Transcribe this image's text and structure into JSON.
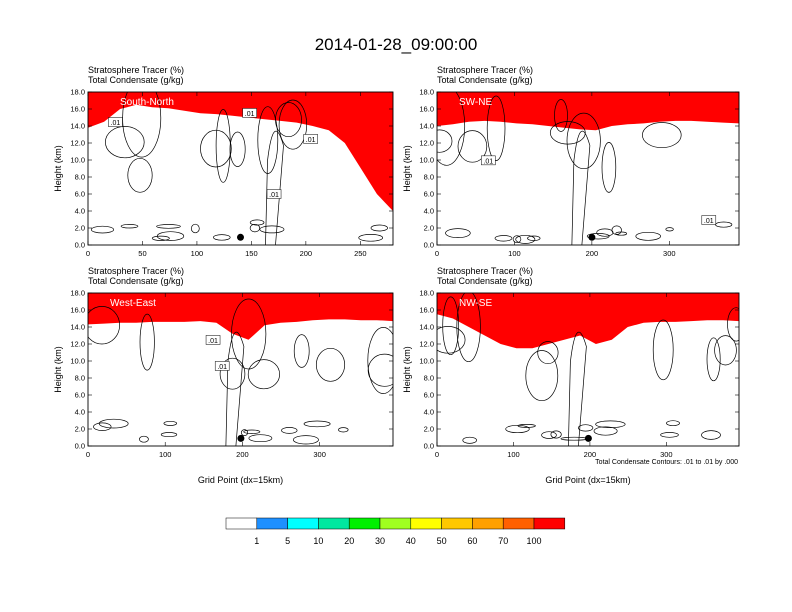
{
  "figure": {
    "title": "2014-01-28_09:00:00",
    "contour_note": "Total Condensate Contours: .01 to .01 by .000",
    "colorbar": {
      "labels": [
        "1",
        "5",
        "10",
        "20",
        "30",
        "40",
        "50",
        "60",
        "70",
        "100"
      ],
      "colors": [
        "#ffffff",
        "#1e90ff",
        "#00ffff",
        "#00e8a0",
        "#00f000",
        "#a0ff20",
        "#ffff00",
        "#ffc800",
        "#ffa000",
        "#ff6000",
        "#ff0000"
      ]
    }
  },
  "chart_data": [
    {
      "type": "heatmap",
      "subtitle_1": "Stratosphere Tracer   (%)",
      "subtitle_2": "Total Condensate   (g/kg)",
      "panel_label": "South-North",
      "ylabel": "Height (km)",
      "xlabel": "",
      "xlim": [
        0,
        280
      ],
      "ylim": [
        0,
        18
      ],
      "xticks": [
        0,
        50,
        100,
        150,
        200,
        250
      ],
      "yticks": [
        "0.0",
        "2.0",
        "4.0",
        "6.0",
        "8.0",
        "10.0",
        "12.0",
        "14.0",
        "16.0",
        "18.0"
      ],
      "contour_labels": [
        ".01",
        ".01",
        ".01",
        ".01"
      ],
      "marker_x": 140,
      "tracer_base_km": [
        13.8,
        14.5,
        16,
        16.5,
        16.2,
        16.1,
        15.8,
        15.5,
        15.4,
        15.2,
        15.0,
        14.8,
        14.6,
        14.4,
        14.0,
        13.5,
        12.0,
        9.0,
        6.0,
        4.0
      ]
    },
    {
      "type": "heatmap",
      "subtitle_1": "Stratosphere Tracer   (%)",
      "subtitle_2": "Total Condensate   (g/kg)",
      "panel_label": "SW-NE",
      "ylabel": "Height (km)",
      "xlabel": "",
      "xlim": [
        0,
        390
      ],
      "ylim": [
        0,
        18
      ],
      "xticks": [
        0,
        100,
        200,
        300
      ],
      "yticks": [
        "0.0",
        "2.0",
        "4.0",
        "6.0",
        "8.0",
        "10.0",
        "12.0",
        "14.0",
        "16.0",
        "18.0"
      ],
      "contour_labels": [
        ".01",
        ".01"
      ],
      "marker_x": 200,
      "tracer_base_km": [
        14.0,
        14.2,
        14.5,
        14.6,
        14.5,
        14.3,
        14.2,
        14.0,
        13.8,
        13.6,
        13.5,
        14.0,
        14.2,
        14.3,
        14.5,
        14.6,
        14.6,
        14.5,
        14.4,
        14.3
      ]
    },
    {
      "type": "heatmap",
      "subtitle_1": "Stratosphere Tracer   (%)",
      "subtitle_2": "Total Condensate   (g/kg)",
      "panel_label": "West-East",
      "ylabel": "Height (km)",
      "xlabel": "Grid Point (dx=15km)",
      "xlim": [
        0,
        395
      ],
      "ylim": [
        0,
        18
      ],
      "xticks": [
        0,
        100,
        200,
        300
      ],
      "yticks": [
        "0.0",
        "2.0",
        "4.0",
        "6.0",
        "8.0",
        "10.0",
        "12.0",
        "14.0",
        "16.0",
        "18.0"
      ],
      "contour_labels": [
        ".01",
        ".01"
      ],
      "marker_x": 198,
      "tracer_base_km": [
        14.3,
        14.4,
        14.5,
        14.5,
        14.6,
        14.6,
        14.6,
        14.7,
        14.5,
        13.2,
        12.5,
        14.2,
        14.5,
        14.6,
        14.8,
        14.9,
        14.9,
        14.8,
        14.8,
        14.7
      ]
    },
    {
      "type": "heatmap",
      "subtitle_1": "Stratosphere Tracer   (%)",
      "subtitle_2": "Total Condensate   (g/kg)",
      "panel_label": "NW-SE",
      "ylabel": "",
      "xlabel": "Grid Point (dx=15km)",
      "xlim": [
        0,
        395
      ],
      "ylim": [
        0,
        18
      ],
      "xticks": [
        0,
        100,
        200,
        300
      ],
      "yticks": [
        "0.0",
        "2.0",
        "4.0",
        "6.0",
        "8.0",
        "10.0",
        "12.0",
        "14.0",
        "16.0",
        "18.0"
      ],
      "contour_labels": [],
      "marker_x": 198,
      "tracer_base_km": [
        15.5,
        15.0,
        14.0,
        13.0,
        12.0,
        11.5,
        11.5,
        12.0,
        12.5,
        13.0,
        12.0,
        12.5,
        14.0,
        14.5,
        14.6,
        14.6,
        14.7,
        14.8,
        14.8,
        14.7
      ]
    }
  ]
}
